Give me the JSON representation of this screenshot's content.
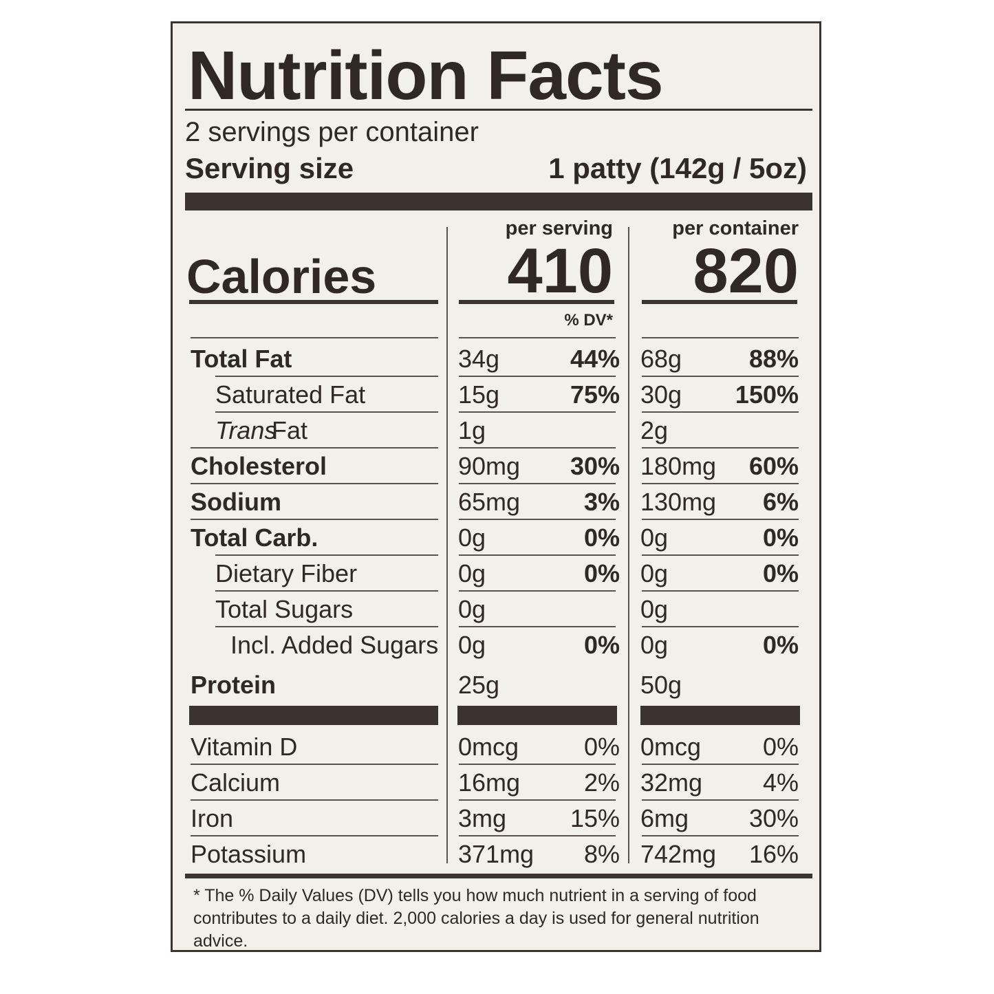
{
  "title": "Nutrition Facts",
  "servings_per_container": "2 servings per container",
  "serving_size_label": "Serving size",
  "serving_size_value": "1 patty (142g / 5oz)",
  "col_per_serving": "per serving",
  "col_per_container": "per container",
  "calories_label": "Calories",
  "calories_per_serving": "410",
  "calories_per_container": "820",
  "dv_header": "% DV*",
  "nutrients": [
    {
      "name": "Total Fat",
      "style": "bold",
      "indent": 0,
      "s_amt": "34g",
      "s_dv": "44%",
      "c_amt": "68g",
      "c_dv": "88%"
    },
    {
      "name": "Saturated Fat",
      "style": "normal",
      "indent": 1,
      "s_amt": "15g",
      "s_dv": "75%",
      "c_amt": "30g",
      "c_dv": "150%"
    },
    {
      "name_italic": "Trans",
      "name": " Fat",
      "style": "normal",
      "indent": 1,
      "s_amt": "1g",
      "s_dv": "",
      "c_amt": "2g",
      "c_dv": ""
    },
    {
      "name": "Cholesterol",
      "style": "bold",
      "indent": 0,
      "s_amt": "90mg",
      "s_dv": "30%",
      "c_amt": "180mg",
      "c_dv": "60%"
    },
    {
      "name": "Sodium",
      "style": "bold",
      "indent": 0,
      "s_amt": "65mg",
      "s_dv": "3%",
      "c_amt": "130mg",
      "c_dv": "6%"
    },
    {
      "name": "Total Carb.",
      "style": "bold",
      "indent": 0,
      "s_amt": "0g",
      "s_dv": "0%",
      "c_amt": "0g",
      "c_dv": "0%"
    },
    {
      "name": "Dietary Fiber",
      "style": "normal",
      "indent": 1,
      "s_amt": "0g",
      "s_dv": "0%",
      "c_amt": "0g",
      "c_dv": "0%"
    },
    {
      "name": "Total Sugars",
      "style": "normal",
      "indent": 1,
      "s_amt": "0g",
      "s_dv": "",
      "c_amt": "0g",
      "c_dv": ""
    },
    {
      "name": "Incl. Added Sugars",
      "style": "normal",
      "indent": 2,
      "s_amt": "0g",
      "s_dv": "0%",
      "c_amt": "0g",
      "c_dv": "0%"
    },
    {
      "name": "Protein",
      "style": "bold",
      "indent": 0,
      "s_amt": "25g",
      "s_dv": "",
      "c_amt": "50g",
      "c_dv": ""
    }
  ],
  "vitamins": [
    {
      "name": "Vitamin D",
      "s_amt": "0mcg",
      "s_dv": "0%",
      "c_amt": "0mcg",
      "c_dv": "0%"
    },
    {
      "name": "Calcium",
      "s_amt": "16mg",
      "s_dv": "2%",
      "c_amt": "32mg",
      "c_dv": "4%"
    },
    {
      "name": "Iron",
      "s_amt": "3mg",
      "s_dv": "15%",
      "c_amt": "6mg",
      "c_dv": "30%"
    },
    {
      "name": "Potassium",
      "s_amt": "371mg",
      "s_dv": "8%",
      "c_amt": "742mg",
      "c_dv": "16%"
    }
  ],
  "footnote": "* The % Daily Values (DV) tells you how much nutrient in a serving of food contributes to a daily diet. 2,000 calories a day is used for general nutrition advice."
}
